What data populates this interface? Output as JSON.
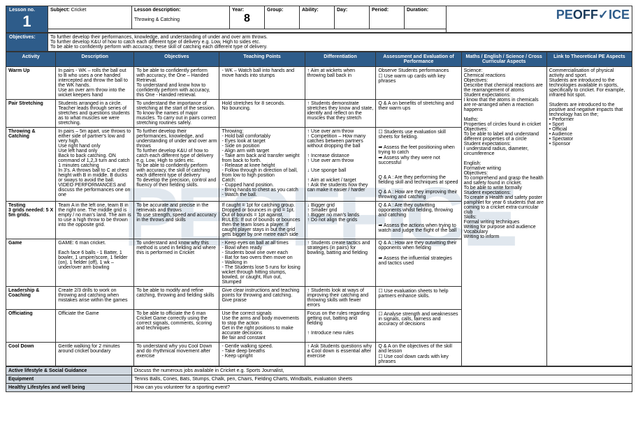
{
  "meta": {
    "lessonNoLabel": "Lesson no.",
    "lessonNo": "1",
    "subjectLabel": "Subject:",
    "subject": "Cricket",
    "descLabel": "Lesson description:",
    "desc": "Throwing & Catching",
    "yearLabel": "Year:",
    "year": "8",
    "groupLabel": "Group:",
    "abilityLabel": "Ability:",
    "dayLabel": "Day:",
    "periodLabel": "Period:",
    "durationLabel": "Duration:",
    "logo": "PEOFFICE"
  },
  "objectives": {
    "label": "Objectives:",
    "lines": [
      "To further develop their performances, knowledge, and understanding of under and over arm throws.",
      "To further develop K&U of how to catch each different type of delivery e.g. Low, High to sides etc.",
      "To be able to confidently perform with accuracy, these skill of catching each different type of delivery."
    ]
  },
  "headers": [
    "Activity",
    "Description",
    "Objectives",
    "Teaching Points",
    "Differentiation",
    "Assessment and Evaluation of Performance",
    "Maths / English / Science / Cross Curricular Aspects",
    "Link to Theoretical PE Aspects"
  ],
  "rows": [
    {
      "activity": "Warm Up",
      "desc": "In pairs - WK – rolls the ball out to B who uses a one handed intercepted and throw the ball to the WK hands.\nUse an over arm throw into the wicket keepers hand",
      "obj": "To be able to confidently perform with accuracy, the One – Handed Retrieval.\nTo understand and know how to confidently perform with accuracy, this One - Handed retrieval.",
      "tp": "- WK – Watch ball into hands and move hands into stumps",
      "diff": "↑ Aim at wickets when throwing ball back in",
      "assess": "Observe Students performances\n☐ Use warm up cards with key phrases",
      "cross": "Science:\nChemical reactions\nObjectives:\nDescribe that chemical reactions are the rearrangement of atoms\nStudent expectations:\nI know that the atoms in chemicals are re-arranged when a reaction happens\n\nMaths:\nProperties of circles found in cricket\nObjectives:\nTo be able to label and understand different properties of a circle\nStudent expectations:\nI understand radius, diameter, circumference\n\nEnglish:\nFormative writing\nObjectives:\nTo comprehend and grasp the health and safety found in cricket.\nTo be able to write formally\nStudent expectations:\nTo create a Health and safety poster pamphlet for year 6 students that are coming to a cricket extra-curricular club\nSkills:\nFormal writing techniques\nWriting for purpose and audience\nVocabulary\nWriting to inform",
      "theory": "Commercialisation of physical activity and sport.\nStudents are introduced to the technologies available in sports, specifically to cricket. For example, infrared hot spot.\n\nStudents are introduced to the positive and negative impacts that technology has on the;\n• Performer\n• Sport\n• Official\n• Audience\n• Spectator\n• Sponsor"
    },
    {
      "activity": "Pair Stretching",
      "desc": "Students arranged in a circle. Teacher leads through series of stretches and questions students as to what muscles we were stretching.",
      "obj": "To understand the importance of stretching at the start of the session.\nTo know the names of major muscles. To carry out in pairs correct stretching routines safely.",
      "tp": "Hold stretches for 8 seconds.\nNo bouncing.",
      "diff": "↑ Students demonstrate stretches they know and state, identify and reflect on the muscles that they stretch",
      "assess": "Q & A on benefits of stretching and their warm ups"
    },
    {
      "activity": "Throwing & Catching",
      "desc": "In pairs – 5m apart, use throws to either side of partner's low and very high.\nUse right hand only\nUse left hand only\nBack to back catching. ON command of 1,2,3 turn and catch\n1 minutes catching\nIn 3's. A throws ball to C at chest height with B in middle. B ducks or sways to avoid the ball.\nVIDEO PERFORMANCES and discuss the performances one on one",
      "obj": "To further develop their performances, knowledge, and understanding of under and over arm throws\nTo further develop K&U of how to catch each different type of delivery e.g. Low, High to sides etc.\nTo be able to confidently perform with accuracy, the skill of catching each different type of delivery\nTo develop the precision, control and fluency of their fielding skills.",
      "tp": "Throwing:\n- Hold ball comfortably\n- Eyes look at target\n- Side on position\n- Align arm with target\n- Take arm back and transfer weight from back to forth.\n- Release at knee height\n- Follow through in direction of ball, from low to high position\nCatch:\n- Cupped hand position.\n- Bring hands to chest as you catch\n- Watch the ball.",
      "diff": "↑ Use over arm throw\n↑ Competition – How many catches between partners without dropping the ball\n\n↑ Increase distance\n↑ Use over arm throw\n\n↓ Use sponge ball\n\n↑ Aim at wicket / target\n↑ Ask the students how they can make it easier / harder",
      "assess": "☐ Students use evaluation skill sheets for fielding.\n\n➡ Assess the feet positioning when trying to catch\n➡ Assess why they were not successful\n\n\nQ & A : Are they performing the fielding skill and techniques at speed\n\nQ & A : How are they improving their throwing and catching"
    },
    {
      "activity": "Testing\n3 grids needed: 5 X 5m grids.",
      "desc": "Team A in the left one, team B in the right one. The middle grid is empty / no man's land. The aim is to use a high throw to be thrown into the opposite grid.",
      "obj": "To be accurate and precise in the retrievals and throws\nTo use strength, speed and accuracy in the throws and skills",
      "tp": "If caught = 1pt for catching group. Dropped or bounces in grid = 1pt. Out of bounds = 1pt against.\nRULES: If out of bounds or bounces then the team loses a player. If caught player stays in but the grid gets bigger by one metre each side",
      "diff": "↓ Bigger grid\n↑ Smaller grid\n↑ Bigger no man's lands\n↑ Do not align the grids",
      "assess": "Q & A : Are they outwitting opponents whilst fielding, throwing and catching\n\n➡ Assess the actions when trying to watch and judge the flight of the ball"
    },
    {
      "activity": "Game",
      "desc": "GAME: 6 man cricket.\n\nEach face 6 balls - 1 Batter, 1 bowler, 1 umpire/score, 1 fielder (on), 1 fielder (off), 1 wk – under/over arm bowling",
      "obj": "To understand and know why this method is used in fielding and where this is performed in Cricket",
      "tp": "- Keep eyes on ball at all times\n- Bowl when ready\n- Students bowl one over each\n- Bat for two overs then move on\n- Walking in\n- The Students lose 5 runs for losing wicket through hitting stumps, bowled, or caught, Run out, Stumped",
      "diff": "↑ Students create tactics and strategies (in pairs) for bowling, batting and fielding",
      "assess": "Q & A : How are they outwitting their opponents when fielding\n\n➡ Assess the influential strategies and tactics used"
    },
    {
      "activity": "Leadership & Coaching",
      "desc": "Create 2/3 drills to work on throwing and catching when mistakes arise within the games",
      "obj": "To be able to modify and refine catching, throwing and fielding skills",
      "tp": "Give clear instructions and teaching points for throwing and catching.\nGive praise",
      "diff": "↑ Students look at ways of improving their catching and throwing skills with fewer errors",
      "assess": "☐ Use evaluation sheets to help partners enhance skills."
    },
    {
      "activity": "Officiating",
      "desc": "Officiate the Game",
      "obj": "To be able to officiate the 6 man Cricket Game correctly using the correct signals, comments, scoring and techniques",
      "tp": "Use the correct signals\nUse the arms and body movements to stop the action\nGet in the right positions to make accurate decisions\nBe fair and constant",
      "diff": "Focus on the rules regarding getting out, batting and fielding\n\n↑ Introduce new rules",
      "assess": "☐ Analyse strength and weaknesses in signals, calls, fairness and accuracy of decisions"
    },
    {
      "activity": "Cool Down",
      "desc": "Gentle walking for 2 minutes around cricket boundary",
      "obj": "To understand why you Cool Down and do rhythmical movement after exercise",
      "tp": "- Gentle walking speed.\n- Take deep breaths\n- Keep upright",
      "diff": "↑ Ask Students questions why a Cool down is essential after exercise",
      "assess": "Q & A on the objectives of the skill and lesson\n☐ Use cool down cards with key phrases"
    }
  ],
  "footer": [
    {
      "label": "Active lifestyle & Social Guidance",
      "text": "Discuss the numerous jobs available in Cricket e.g. Sports Journalist,"
    },
    {
      "label": "Equipment",
      "text": "Tennis Balls, Cones, Bats, Stumps, Chalk, pen, Chairs, Fielding Charts, Windballs, evaluation sheets"
    },
    {
      "label": "Healthy Lifestyles and well being",
      "text": "How can you volunteer for a sporting event?"
    }
  ]
}
